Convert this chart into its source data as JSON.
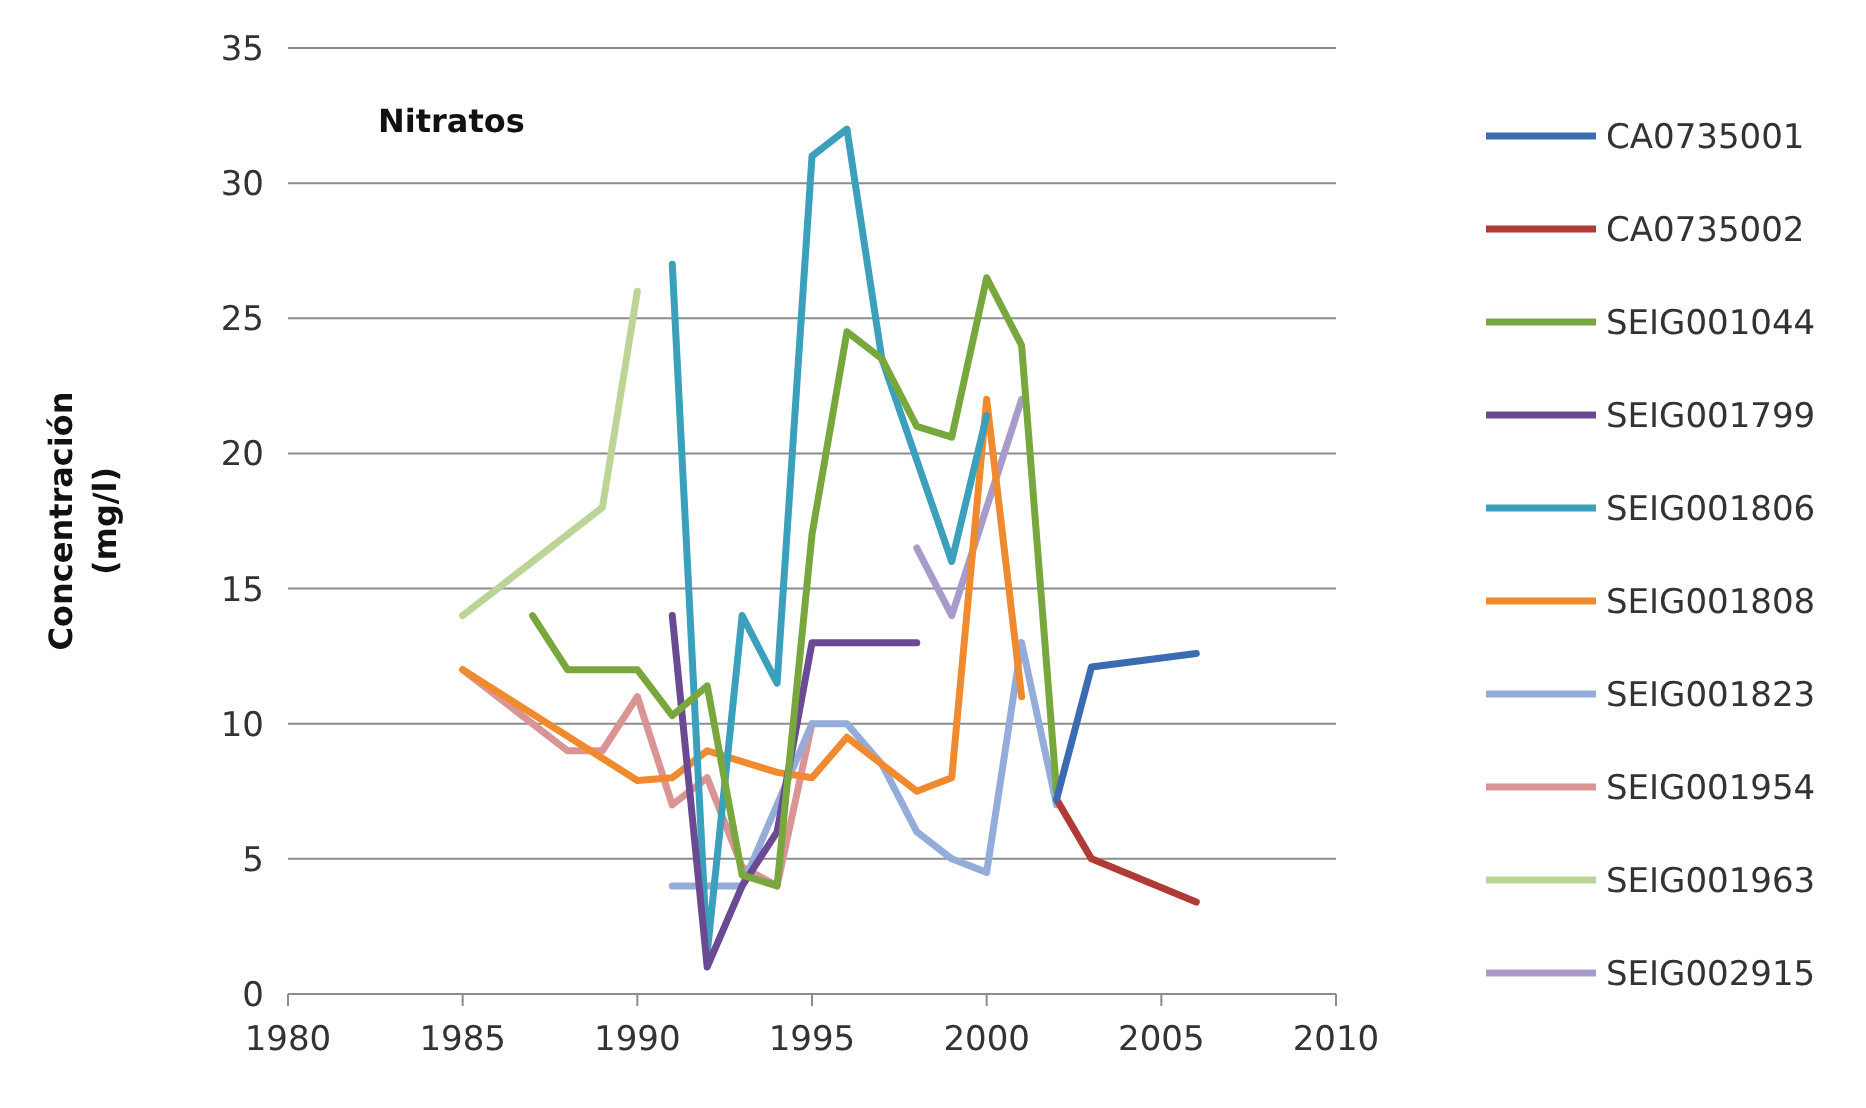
{
  "chart_data": {
    "type": "line",
    "title": "Nitratos",
    "ylabel": "Concentración (mg/l)",
    "xlim": [
      1980,
      2010
    ],
    "xticks": [
      1980,
      1985,
      1990,
      1995,
      2000,
      2005,
      2010
    ],
    "ylim": [
      0,
      35
    ],
    "yticks": [
      0,
      5,
      10,
      15,
      20,
      25,
      30,
      35
    ],
    "grid": "y",
    "legend": "right",
    "marker": "none",
    "line_style": "solid",
    "series": [
      {
        "name": "CA0735001",
        "color": "#3b6bb0",
        "x": [
          2002,
          2003,
          2006
        ],
        "values": [
          7.2,
          12.1,
          12.6
        ]
      },
      {
        "name": "CA0735002",
        "color": "#b03a36",
        "x": [
          2002,
          2003,
          2006
        ],
        "values": [
          7.2,
          5,
          3.4
        ]
      },
      {
        "name": "SEIG001044",
        "color": "#78a73e",
        "x": [
          1987,
          1988,
          1990,
          1991,
          1992,
          1993,
          1994,
          1995,
          1996,
          1997,
          1998,
          1999,
          2000,
          2001,
          2002
        ],
        "values": [
          14,
          12,
          12,
          10.3,
          11.4,
          4.4,
          4,
          17,
          24.5,
          23.5,
          21,
          20.6,
          26.5,
          24,
          7.5
        ]
      },
      {
        "name": "SEIG001799",
        "color": "#6a4a93",
        "x": [
          1991,
          1992,
          1993,
          1994,
          1995,
          1996,
          1998
        ],
        "values": [
          14,
          1,
          4,
          6,
          13,
          13,
          13
        ]
      },
      {
        "name": "SEIG001806",
        "color": "#3aa0bb",
        "x": [
          1991,
          1992,
          1993,
          1994,
          1995,
          1996,
          1997,
          1999,
          2000
        ],
        "values": [
          27,
          1.5,
          14,
          11.5,
          31,
          32,
          23.5,
          16,
          21.4
        ]
      },
      {
        "name": "SEIG001808",
        "color": "#ef8a2e",
        "x": [
          1985,
          1990,
          1991,
          1992,
          1994,
          1995,
          1996,
          1998,
          1999,
          2000,
          2001
        ],
        "values": [
          12,
          7.9,
          8,
          9,
          8.2,
          8,
          9.5,
          7.5,
          8,
          22,
          11
        ]
      },
      {
        "name": "SEIG001823",
        "color": "#93acd9",
        "x": [
          1991,
          1993,
          1995,
          1996,
          1997,
          1998,
          1999,
          2000,
          2001,
          2002
        ],
        "values": [
          4,
          4,
          10,
          10,
          8.5,
          6,
          5,
          4.5,
          13,
          7
        ]
      },
      {
        "name": "SEIG001954",
        "color": "#d99493",
        "x": [
          1985,
          1988,
          1989,
          1990,
          1991,
          1992,
          1993,
          1994,
          1995
        ],
        "values": [
          12,
          9,
          9,
          11,
          7,
          8,
          4.7,
          4,
          10
        ]
      },
      {
        "name": "SEIG001963",
        "color": "#bcd597",
        "x": [
          1985,
          1989,
          1990
        ],
        "values": [
          14,
          18,
          26
        ]
      },
      {
        "name": "SEIG002915",
        "color": "#a99bc9",
        "x": [
          1998,
          1999,
          2000,
          2001
        ],
        "values": [
          16.5,
          14,
          18,
          22
        ]
      }
    ]
  }
}
